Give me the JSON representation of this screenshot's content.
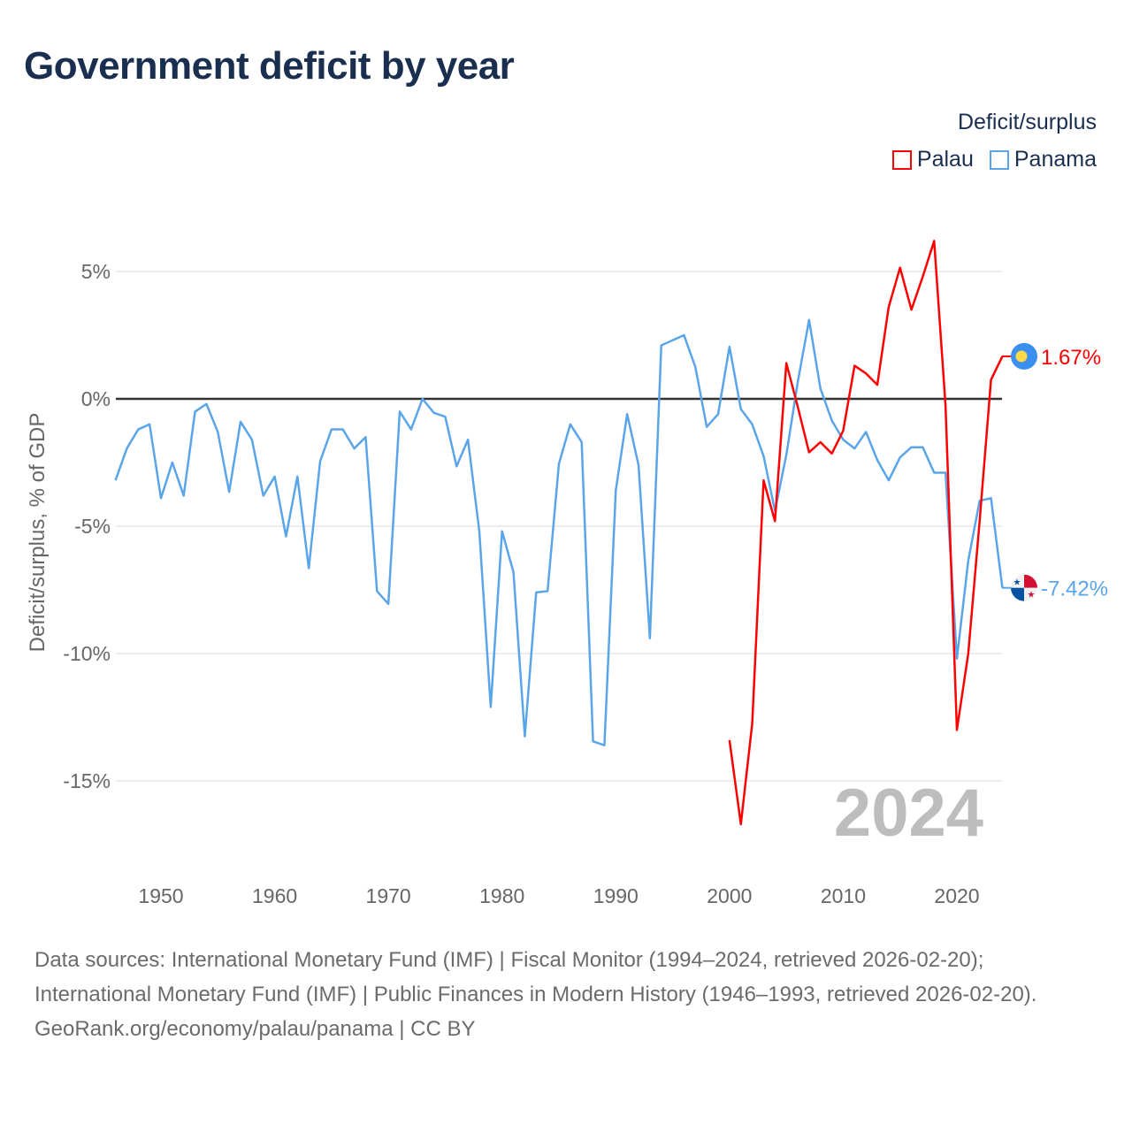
{
  "title": "Government deficit by year",
  "legend": {
    "title": "Deficit/surplus",
    "items": [
      {
        "label": "Palau",
        "color": "#ff0000"
      },
      {
        "label": "Panama",
        "color": "#5aa5ea"
      }
    ]
  },
  "footer": {
    "sources": "Data sources: International Monetary Fund (IMF) | Fiscal Monitor (1994–2024, retrieved 2026-02-20); International Monetary Fund (IMF) | Public Finances in Modern History (1946–1993, retrieved 2026-02-20).",
    "credit": "GeoRank.org/economy/palau/panama | CC BY"
  },
  "chart_data": {
    "type": "line",
    "title": "Government deficit by year",
    "xlabel": "",
    "ylabel": "Deficit/surplus, % of GDP",
    "xlim": [
      1946,
      2024
    ],
    "ylim": [
      -17.5,
      7.5
    ],
    "x_ticks": [
      1950,
      1960,
      1970,
      1980,
      1990,
      2000,
      2010,
      2020
    ],
    "y_ticks": [
      5,
      0,
      -5,
      -10,
      -15
    ],
    "y_tick_labels": [
      "5%",
      "0%",
      "-5%",
      "-10%",
      "-15%"
    ],
    "year_watermark": "2024",
    "grid": true,
    "series": [
      {
        "name": "Palau",
        "color": "#ff0000",
        "end_label": "1.67%",
        "start_year": 2000,
        "values": [
          -13.4,
          -16.7,
          -12.75,
          -3.2,
          -4.8,
          1.4,
          -0.3,
          -2.1,
          -1.7,
          -2.15,
          -1.25,
          1.3,
          1.0,
          0.55,
          3.6,
          5.15,
          3.5,
          4.8,
          6.2,
          -0.25,
          -13.0,
          -10.0,
          -4.8,
          0.75,
          1.67
        ]
      },
      {
        "name": "Panama",
        "color": "#5aa5ea",
        "end_label": "-7.42%",
        "start_year": 1946,
        "values": [
          -3.2,
          -1.95,
          -1.2,
          -1.0,
          -3.9,
          -2.5,
          -3.8,
          -0.5,
          -0.2,
          -1.3,
          -3.65,
          -0.9,
          -1.6,
          -3.8,
          -3.05,
          -5.4,
          -3.05,
          -6.65,
          -2.45,
          -1.2,
          -1.2,
          -1.95,
          -1.5,
          -7.55,
          -8.05,
          -0.5,
          -1.2,
          0.0,
          -0.55,
          -0.7,
          -2.65,
          -1.6,
          -5.2,
          -12.1,
          -5.2,
          -6.8,
          -13.25,
          -7.6,
          -7.55,
          -2.55,
          -1.0,
          -1.7,
          -13.45,
          -13.6,
          -3.6,
          -0.6,
          -2.6,
          -9.4,
          2.1,
          2.3,
          2.5,
          1.25,
          -1.1,
          -0.6,
          2.05,
          -0.4,
          -1.0,
          -2.25,
          -4.4,
          -2.2,
          0.65,
          3.1,
          0.4,
          -0.85,
          -1.6,
          -1.95,
          -1.3,
          -2.4,
          -3.2,
          -2.3,
          -1.9,
          -1.9,
          -2.9,
          -2.9,
          -10.2,
          -6.35,
          -4.0,
          -3.9,
          -7.42
        ]
      }
    ]
  }
}
